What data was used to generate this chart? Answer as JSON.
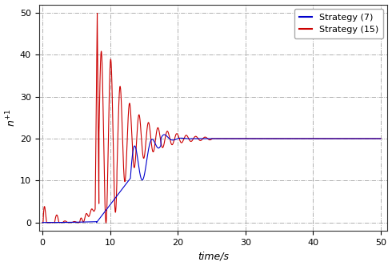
{
  "title": "",
  "xlabel": "time/s",
  "ylabel": "n^{+1}",
  "xlim": [
    -0.5,
    51
  ],
  "ylim": [
    -2,
    52
  ],
  "xticks": [
    0,
    10,
    20,
    30,
    40,
    50
  ],
  "yticks": [
    0,
    10,
    20,
    30,
    40,
    50
  ],
  "steady_state": 20,
  "t_end": 50,
  "color_strategy7": "#0000cc",
  "color_strategy15": "#cc0000",
  "legend_labels": [
    "Strategy (7)",
    "Strategy (15)"
  ],
  "grid_color": "#999999",
  "grid_style": "-.",
  "background_color": "#ffffff",
  "linewidth": 0.8
}
